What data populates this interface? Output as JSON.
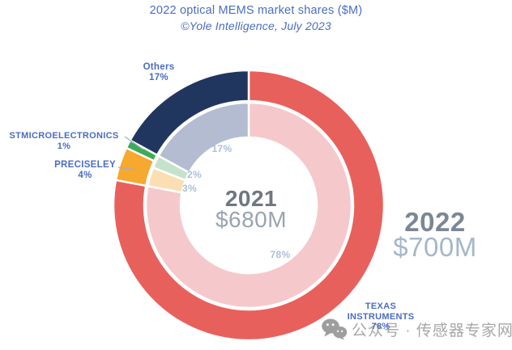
{
  "header": {
    "title": "2022 optical MEMS market shares ($M)",
    "subtitle": "©Yole Intelligence, July 2023"
  },
  "chart_data": {
    "type": "pie",
    "subtype": "double-donut",
    "title": "2022 optical MEMS market shares ($M)",
    "source": "©Yole Intelligence, July 2023",
    "start_angle_deg": 0,
    "direction": "clockwise",
    "rings": [
      {
        "year": "2022",
        "total": "$700M",
        "position": "outer",
        "segments": [
          {
            "name": "TEXAS INSTRUMENTS",
            "pct": 78,
            "pct_label": "78%",
            "color": "#e8605c"
          },
          {
            "name": "PRECISELEY",
            "pct": 4,
            "pct_label": "4%",
            "color": "#f7a82e"
          },
          {
            "name": "STMICROELECTRONICS",
            "pct": 1,
            "pct_label": "1%",
            "color": "#3bac58"
          },
          {
            "name": "Others",
            "pct": 17,
            "pct_label": "17%",
            "color": "#21365f"
          }
        ]
      },
      {
        "year": "2021",
        "total": "$680M",
        "position": "inner",
        "segments": [
          {
            "name": "TEXAS INSTRUMENTS",
            "pct": 78,
            "pct_label": "78%",
            "color": "#f5c9cc"
          },
          {
            "name": "PRECISELEY",
            "pct": 3,
            "pct_label": "3%",
            "color": "#fbdfb3"
          },
          {
            "name": "STMICROELECTRONICS",
            "pct": 2,
            "pct_label": "2%",
            "color": "#c5e3cb"
          },
          {
            "name": "Others",
            "pct": 17,
            "pct_label": "17%",
            "color": "#b4bcd1"
          }
        ]
      }
    ]
  },
  "watermark": {
    "icon": "wechat-icon",
    "text": "公众号 · 传感器专家网"
  },
  "colors": {
    "title_blue": "#4a6dc3",
    "callout_blue": "#4a6dc3",
    "inner_pct_label": "#abbfdc",
    "year_2021_text": "#6f7781",
    "total_2021_text": "#99a4b0",
    "year_2022_text": "#7b8795",
    "total_2022_text": "#a4b7c9",
    "leader_line": "#9db0ca",
    "watermark_gray": "#a7a7a7"
  }
}
